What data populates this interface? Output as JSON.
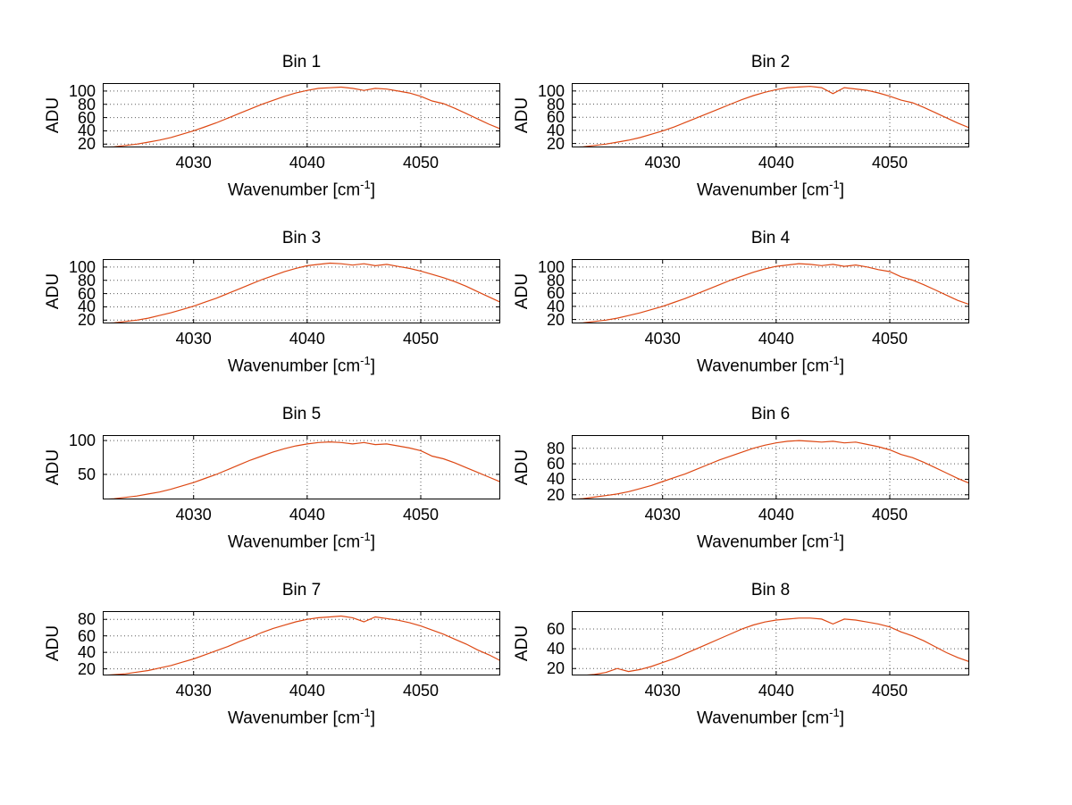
{
  "figure": {
    "background": "#ffffff",
    "line_color": "#dd4814",
    "grid_color": "#5a5a5a",
    "axis_color": "#000000",
    "text_color": "#000000"
  },
  "chart_data": [
    {
      "type": "line",
      "title": "Bin 1",
      "xlabel": "Wavenumber [cm⁻¹]",
      "ylabel": "ADU",
      "xlim": [
        4022,
        4057
      ],
      "ylim": [
        15,
        112
      ],
      "xticks": [
        4030,
        4040,
        4050
      ],
      "yticks": [
        20,
        40,
        60,
        80,
        100
      ],
      "grid": true,
      "x": [
        4022,
        4023,
        4024,
        4025,
        4026,
        4027,
        4028,
        4029,
        4030,
        4031,
        4032,
        4033,
        4034,
        4035,
        4036,
        4037,
        4038,
        4039,
        4040,
        4041,
        4042,
        4043,
        4044,
        4045,
        4046,
        4047,
        4048,
        4049,
        4050,
        4051,
        4052,
        4053,
        4054,
        4055,
        4056,
        4057
      ],
      "y": [
        15,
        16,
        18,
        20,
        23,
        26,
        30,
        35,
        40,
        46,
        52,
        59,
        66,
        73,
        80,
        86,
        92,
        97,
        101,
        104,
        105,
        106,
        104,
        101,
        104,
        103,
        100,
        97,
        92,
        85,
        81,
        74,
        66,
        58,
        50,
        43
      ]
    },
    {
      "type": "line",
      "title": "Bin 2",
      "xlabel": "Wavenumber [cm⁻¹]",
      "ylabel": "ADU",
      "xlim": [
        4022,
        4057
      ],
      "ylim": [
        14,
        112
      ],
      "xticks": [
        4030,
        4040,
        4050
      ],
      "yticks": [
        20,
        40,
        60,
        80,
        100
      ],
      "grid": true,
      "x": [
        4022,
        4023,
        4024,
        4025,
        4026,
        4027,
        4028,
        4029,
        4030,
        4031,
        4032,
        4033,
        4034,
        4035,
        4036,
        4037,
        4038,
        4039,
        4040,
        4041,
        4042,
        4043,
        4044,
        4045,
        4046,
        4047,
        4048,
        4049,
        4050,
        4051,
        4052,
        4053,
        4054,
        4055,
        4056,
        4057
      ],
      "y": [
        14,
        15,
        17,
        19,
        22,
        25,
        29,
        34,
        39,
        45,
        52,
        59,
        66,
        73,
        80,
        87,
        93,
        98,
        102,
        105,
        106,
        107,
        105,
        96,
        105,
        103,
        101,
        97,
        92,
        86,
        82,
        75,
        67,
        59,
        51,
        44
      ]
    },
    {
      "type": "line",
      "title": "Bin 3",
      "xlabel": "Wavenumber [cm⁻¹]",
      "ylabel": "ADU",
      "xlim": [
        4022,
        4057
      ],
      "ylim": [
        15,
        112
      ],
      "xticks": [
        4030,
        4040,
        4050
      ],
      "yticks": [
        20,
        40,
        60,
        80,
        100
      ],
      "grid": true,
      "x": [
        4022,
        4023,
        4024,
        4025,
        4026,
        4027,
        4028,
        4029,
        4030,
        4031,
        4032,
        4033,
        4034,
        4035,
        4036,
        4037,
        4038,
        4039,
        4040,
        4041,
        4042,
        4043,
        4044,
        4045,
        4046,
        4047,
        4048,
        4049,
        4050,
        4051,
        4052,
        4053,
        4054,
        4055,
        4056,
        4057
      ],
      "y": [
        15,
        16,
        18,
        20,
        23,
        27,
        31,
        36,
        41,
        47,
        53,
        60,
        67,
        74,
        81,
        87,
        93,
        98,
        102,
        104,
        106,
        105,
        103,
        105,
        102,
        104,
        101,
        98,
        94,
        89,
        84,
        78,
        71,
        63,
        55,
        47
      ]
    },
    {
      "type": "line",
      "title": "Bin 4",
      "xlabel": "Wavenumber [cm⁻¹]",
      "ylabel": "ADU",
      "xlim": [
        4022,
        4057
      ],
      "ylim": [
        14,
        112
      ],
      "xticks": [
        4030,
        4040,
        4050
      ],
      "yticks": [
        20,
        40,
        60,
        80,
        100
      ],
      "grid": true,
      "x": [
        4022,
        4023,
        4024,
        4025,
        4026,
        4027,
        4028,
        4029,
        4030,
        4031,
        4032,
        4033,
        4034,
        4035,
        4036,
        4037,
        4038,
        4039,
        4040,
        4041,
        4042,
        4043,
        4044,
        4045,
        4046,
        4047,
        4048,
        4049,
        4050,
        4051,
        4052,
        4053,
        4054,
        4055,
        4056,
        4057
      ],
      "y": [
        14,
        15,
        17,
        19,
        22,
        26,
        30,
        35,
        40,
        46,
        52,
        59,
        66,
        73,
        80,
        86,
        92,
        97,
        101,
        103,
        105,
        104,
        102,
        104,
        101,
        103,
        100,
        96,
        93,
        85,
        80,
        73,
        65,
        57,
        49,
        43
      ]
    },
    {
      "type": "line",
      "title": "Bin 5",
      "xlabel": "Wavenumber [cm⁻¹]",
      "ylabel": "ADU",
      "xlim": [
        4022,
        4057
      ],
      "ylim": [
        13,
        108
      ],
      "xticks": [
        4030,
        4040,
        4050
      ],
      "yticks": [
        50,
        100
      ],
      "grid": true,
      "x": [
        4022,
        4023,
        4024,
        4025,
        4026,
        4027,
        4028,
        4029,
        4030,
        4031,
        4032,
        4033,
        4034,
        4035,
        4036,
        4037,
        4038,
        4039,
        4040,
        4041,
        4042,
        4043,
        4044,
        4045,
        4046,
        4047,
        4048,
        4049,
        4050,
        4051,
        4052,
        4053,
        4054,
        4055,
        4056,
        4057
      ],
      "y": [
        13,
        14,
        16,
        18,
        21,
        24,
        28,
        33,
        38,
        44,
        50,
        57,
        64,
        71,
        77,
        83,
        88,
        92,
        95,
        97,
        98,
        97,
        95,
        97,
        94,
        95,
        92,
        89,
        85,
        77,
        73,
        67,
        60,
        53,
        46,
        39
      ]
    },
    {
      "type": "line",
      "title": "Bin 6",
      "xlabel": "Wavenumber [cm⁻¹]",
      "ylabel": "ADU",
      "xlim": [
        4022,
        4057
      ],
      "ylim": [
        14,
        97
      ],
      "xticks": [
        4030,
        4040,
        4050
      ],
      "yticks": [
        20,
        40,
        60,
        80
      ],
      "grid": true,
      "x": [
        4022,
        4023,
        4024,
        4025,
        4026,
        4027,
        4028,
        4029,
        4030,
        4031,
        4032,
        4033,
        4034,
        4035,
        4036,
        4037,
        4038,
        4039,
        4040,
        4041,
        4042,
        4043,
        4044,
        4045,
        4046,
        4047,
        4048,
        4049,
        4050,
        4051,
        4052,
        4053,
        4054,
        4055,
        4056,
        4057
      ],
      "y": [
        14,
        15,
        17,
        19,
        21,
        24,
        28,
        32,
        37,
        42,
        47,
        53,
        59,
        65,
        70,
        75,
        80,
        84,
        87,
        89,
        90,
        89,
        88,
        89,
        87,
        88,
        85,
        82,
        78,
        72,
        68,
        62,
        55,
        48,
        41,
        35
      ]
    },
    {
      "type": "line",
      "title": "Bin 7",
      "xlabel": "Wavenumber [cm⁻¹]",
      "ylabel": "ADU",
      "xlim": [
        4022,
        4057
      ],
      "ylim": [
        12,
        90
      ],
      "xticks": [
        4030,
        4040,
        4050
      ],
      "yticks": [
        20,
        40,
        60,
        80
      ],
      "grid": true,
      "x": [
        4022,
        4023,
        4024,
        4025,
        4026,
        4027,
        4028,
        4029,
        4030,
        4031,
        4032,
        4033,
        4034,
        4035,
        4036,
        4037,
        4038,
        4039,
        4040,
        4041,
        4042,
        4043,
        4044,
        4045,
        4046,
        4047,
        4048,
        4049,
        4050,
        4051,
        4052,
        4053,
        4054,
        4055,
        4056,
        4057
      ],
      "y": [
        12,
        13,
        14,
        16,
        18,
        21,
        24,
        28,
        32,
        37,
        42,
        47,
        53,
        58,
        64,
        69,
        73,
        77,
        80,
        82,
        83,
        84,
        82,
        77,
        83,
        81,
        79,
        76,
        72,
        67,
        62,
        56,
        50,
        43,
        37,
        30
      ]
    },
    {
      "type": "line",
      "title": "Bin 8",
      "xlabel": "Wavenumber [cm⁻¹]",
      "ylabel": "ADU",
      "xlim": [
        4022,
        4057
      ],
      "ylim": [
        13,
        78
      ],
      "xticks": [
        4030,
        4040,
        4050
      ],
      "yticks": [
        20,
        40,
        60
      ],
      "grid": true,
      "x": [
        4022,
        4023,
        4024,
        4025,
        4026,
        4027,
        4028,
        4029,
        4030,
        4031,
        4032,
        4033,
        4034,
        4035,
        4036,
        4037,
        4038,
        4039,
        4040,
        4041,
        4042,
        4043,
        4044,
        4045,
        4046,
        4047,
        4048,
        4049,
        4050,
        4051,
        4052,
        4053,
        4054,
        4055,
        4056,
        4057
      ],
      "y": [
        13,
        13,
        14,
        16,
        20,
        17,
        19,
        22,
        26,
        30,
        35,
        40,
        45,
        50,
        55,
        60,
        64,
        67,
        69,
        70,
        71,
        71,
        70,
        65,
        70,
        69,
        67,
        65,
        62,
        57,
        53,
        48,
        42,
        36,
        31,
        27
      ]
    }
  ]
}
